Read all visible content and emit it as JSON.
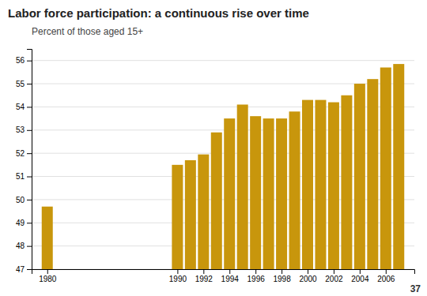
{
  "chart_data": {
    "type": "bar",
    "title": "Labor force participation: a continuous rise over time",
    "subtitle": "Percent of those aged 15+",
    "annotations": [
      "37"
    ],
    "x": [
      1980,
      1990,
      1991,
      1992,
      1993,
      1994,
      1995,
      1996,
      1997,
      1998,
      1999,
      2000,
      2001,
      2002,
      2003,
      2004,
      2005,
      2006,
      2007
    ],
    "values": [
      49.7,
      51.5,
      51.7,
      51.95,
      52.9,
      53.5,
      54.1,
      53.6,
      53.5,
      53.5,
      53.8,
      54.3,
      54.3,
      54.2,
      54.5,
      55.0,
      55.2,
      55.7,
      55.85
    ],
    "color": "#C8960C",
    "xlim": [
      1978.8,
      2008.2
    ],
    "xticks": [
      1980,
      1990,
      1992,
      1994,
      1996,
      1998,
      2000,
      2002,
      2004,
      2006
    ],
    "ylim": [
      47,
      56.5
    ],
    "yticks": [
      47,
      48,
      49,
      50,
      51,
      52,
      53,
      54,
      55,
      56
    ],
    "grid": true
  }
}
